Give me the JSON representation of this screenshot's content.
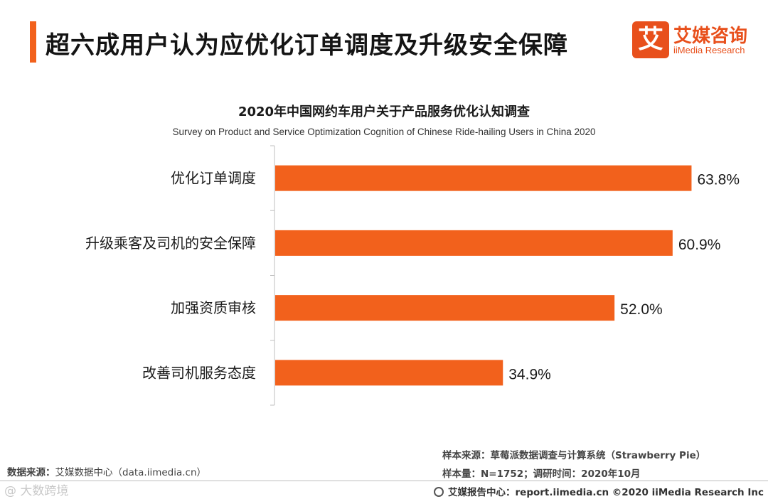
{
  "header": {
    "title": "超六成用户认为应优化订单调度及升级安全保障",
    "logo_mark": "艾",
    "logo_cn": "艾媒咨询",
    "logo_en": "iiMedia Research"
  },
  "chart_data": {
    "type": "bar",
    "orientation": "horizontal",
    "title": "2020年中国网约车用户关于产品服务优化认知调查",
    "subtitle": "Survey on Product and Service Optimization Cognition of Chinese Ride-hailing Users in China 2020",
    "categories": [
      "优化订单调度",
      "升级乘客及司机的安全保障",
      "加强资质审核",
      "改善司机服务态度"
    ],
    "values": [
      63.8,
      60.9,
      52.0,
      34.9
    ],
    "value_labels": [
      "63.8%",
      "60.9%",
      "52.0%",
      "34.9%"
    ],
    "unit": "%",
    "xlim": [
      0,
      68
    ],
    "bar_color": "#f2611c",
    "grid": false,
    "legend": "none"
  },
  "footer": {
    "source_label": "数据来源：",
    "source_value": "艾媒数据中心（data.iimedia.cn）",
    "sample_source": "样本来源：草莓派数据调查与计算系统（Strawberry Pie）",
    "sample_size": "样本量：N=1752；调研时间：2020年10月",
    "report_center": "艾媒报告中心：report.iimedia.cn ©2020  iiMedia Research  Inc",
    "watermark": "@ 大数跨境"
  }
}
